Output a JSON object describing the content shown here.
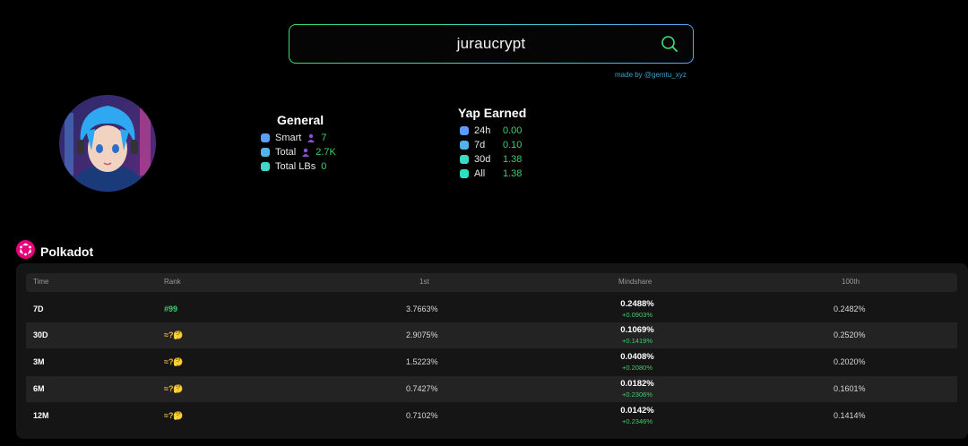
{
  "search": {
    "value": "juraucrypt"
  },
  "credit": "made by @gemtu_xyz",
  "general": {
    "title": "General",
    "items": [
      {
        "label": "Smart",
        "value": "7",
        "color": "#5b9cff"
      },
      {
        "label": "Total",
        "value": "2.7K",
        "color": "#4fb4f0"
      },
      {
        "label": "Total LBs",
        "value": "0",
        "color": "#3ed6c6"
      }
    ]
  },
  "yap": {
    "title": "Yap Earned",
    "items": [
      {
        "label": "24h",
        "value": "0.00",
        "color": "#5b9cff"
      },
      {
        "label": "7d",
        "value": "0.10",
        "color": "#4fb4f0"
      },
      {
        "label": "30d",
        "value": "1.38",
        "color": "#3ed6c6"
      },
      {
        "label": "All",
        "value": "1.38",
        "color": "#2fe0c0"
      }
    ]
  },
  "section": {
    "title": "Polkadot",
    "accent": "#e6007a"
  },
  "table": {
    "headers": [
      "Time",
      "Rank",
      "1st",
      "Mindshare",
      "100th"
    ],
    "rows": [
      {
        "time": "7D",
        "rank": "#99",
        "first": "3.7663%",
        "mindshare": "0.2488%",
        "delta": "+0.0903%",
        "hundredth": "0.2482%"
      },
      {
        "time": "30D",
        "rank": "≈?🤔",
        "first": "2.9075%",
        "mindshare": "0.1069%",
        "delta": "+0.1419%",
        "hundredth": "0.2520%"
      },
      {
        "time": "3M",
        "rank": "≈?🤔",
        "first": "1.5223%",
        "mindshare": "0.0408%",
        "delta": "+0.2080%",
        "hundredth": "0.2020%"
      },
      {
        "time": "6M",
        "rank": "≈?🤔",
        "first": "0.7427%",
        "mindshare": "0.0182%",
        "delta": "+0.2306%",
        "hundredth": "0.1601%"
      },
      {
        "time": "12M",
        "rank": "≈?🤔",
        "first": "0.7102%",
        "mindshare": "0.0142%",
        "delta": "+0.2346%",
        "hundredth": "0.1414%"
      }
    ]
  }
}
